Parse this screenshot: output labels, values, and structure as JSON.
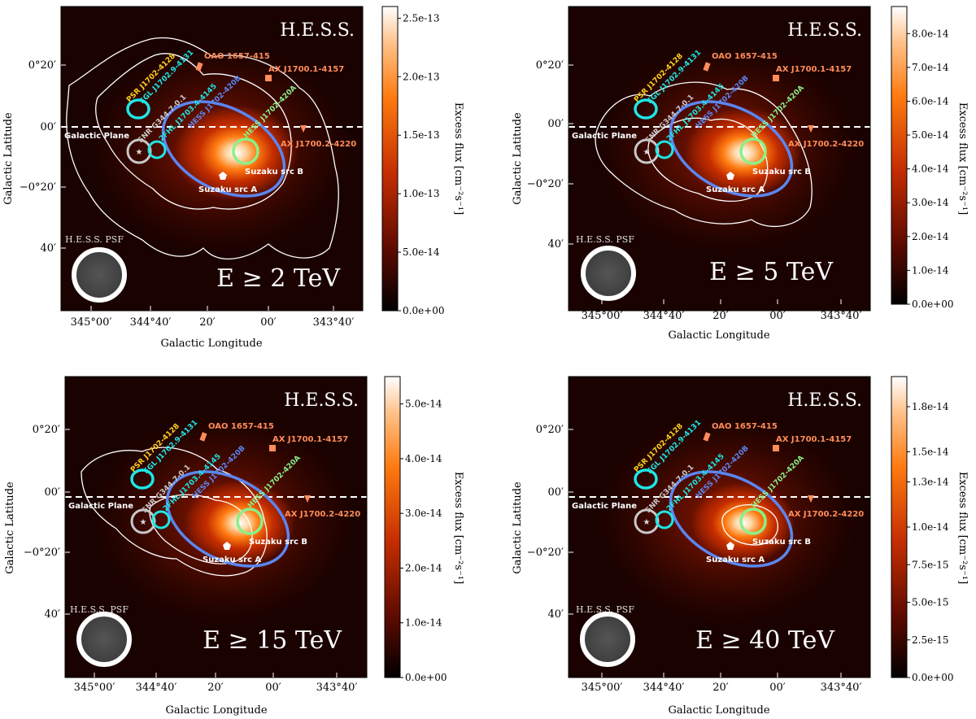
{
  "chart_data": [
    {
      "type": "heatmap",
      "instrument_label": "H.E.S.S.",
      "energy_label": "E ≥ 2 TeV",
      "psf_label": "H.E.S.S. PSF",
      "galactic_plane_label": "Galactic Plane",
      "xlabel": "Galactic Longitude",
      "ylabel": "Galactic Latitude",
      "x_ticks": [
        "345°00′",
        "344°40′",
        "20′",
        "00′",
        "343°40′"
      ],
      "y_ticks": [
        "0°20′",
        "00′",
        "−0°20′",
        "40′"
      ],
      "colorbar_label": "Excess flux [cm⁻²s⁻¹]",
      "colorbar_ticks": [
        "0.0e+00",
        "5.0e-14",
        "1.0e-13",
        "1.5e-13",
        "2.0e-13",
        "2.5e-13"
      ],
      "colorbar_range": [
        0,
        2.6e-13
      ],
      "hotspot": {
        "l": 344.18,
        "b": -0.12,
        "peak_fraction": 0.95
      },
      "sources": {
        "psr": "PSR J1702-4128",
        "fgl": "FGL J1702.9-4131",
        "fhl": "2FHL J1703.4-4145",
        "hess": "HESS J1702-420B",
        "hessa": "HESS J1702-420A",
        "snr": "SNR G344.7-0.1",
        "oao": "OAO 1657-415",
        "ax1": "AX J1700.1-4157",
        "ax2": "AX J1700.2-4220",
        "suzb": "Suzaku src B",
        "suza": "Suzaku src A"
      },
      "colors": {
        "psr": "#ffd21f",
        "fgl": "#1ee6e6",
        "fhl": "#1ee6e6",
        "hess": "#5b86f0",
        "hessa": "#8af08a",
        "snr": "#c8c8c8",
        "marker": "#ff8c5a"
      }
    },
    {
      "type": "heatmap",
      "instrument_label": "H.E.S.S.",
      "energy_label": "E ≥ 5 TeV",
      "psf_label": "H.E.S.S. PSF",
      "galactic_plane_label": "Galactic Plane",
      "xlabel": "Galactic Longitude",
      "ylabel": "Galactic Latitude",
      "x_ticks": [
        "345°00′",
        "344°40′",
        "20′",
        "00′",
        "343°40′"
      ],
      "y_ticks": [
        "0°20′",
        "00′",
        "−0°20′",
        "40′"
      ],
      "colorbar_label": "Excess flux [cm⁻²s⁻¹]",
      "colorbar_ticks": [
        "0.0e+00",
        "1.0e-14",
        "2.0e-14",
        "3.0e-14",
        "4.0e-14",
        "5.0e-14",
        "6.0e-14",
        "7.0e-14",
        "8.0e-14"
      ],
      "colorbar_range": [
        0,
        8.8e-14
      ],
      "hotspot": {
        "l": 344.15,
        "b": -0.13,
        "peak_fraction": 0.9
      },
      "sources": {
        "psr": "PSR J1702-4128",
        "fgl": "FGL J1702.9-4131",
        "fhl": "2FHL J1703.4-4145",
        "hess": "HESS J1702-420B",
        "hessa": "HESS J1702-420A",
        "snr": "SNR G344.7-0.1",
        "oao": "OAO 1657-415",
        "ax1": "AX J1700.1-4157",
        "ax2": "AX J1700.2-4220",
        "suzb": "Suzaku src B",
        "suza": "Suzaku src A"
      },
      "colors": {
        "psr": "#ffd21f",
        "fgl": "#1ee6e6",
        "fhl": "#1ee6e6",
        "hess": "#5b86f0",
        "hessa": "#8af08a",
        "snr": "#c8c8c8",
        "marker": "#ff8c5a"
      }
    },
    {
      "type": "heatmap",
      "instrument_label": "H.E.S.S.",
      "energy_label": "E ≥ 15 TeV",
      "psf_label": "H.E.S.S. PSF",
      "galactic_plane_label": "Galactic Plane",
      "xlabel": "Galactic Longitude",
      "ylabel": "Galactic Latitude",
      "x_ticks": [
        "345°00′",
        "344°40′",
        "20′",
        "00′",
        "343°40′"
      ],
      "y_ticks": [
        "0°20′",
        "00′",
        "−0°20′",
        "40′"
      ],
      "colorbar_label": "Excess flux [cm⁻²s⁻¹]",
      "colorbar_ticks": [
        "0.0e+00",
        "1.0e-14",
        "2.0e-14",
        "3.0e-14",
        "4.0e-14",
        "5.0e-14"
      ],
      "colorbar_range": [
        0,
        5.5e-14
      ],
      "hotspot": {
        "l": 344.15,
        "b": -0.14,
        "peak_fraction": 0.85
      },
      "sources": {
        "psr": "PSR J1702-4128",
        "fgl": "FGL J1702.9-4131",
        "fhl": "2FHL J1703.4-4145",
        "hess": "HESS J1702-420B",
        "hessa": "HESS J1702-420A",
        "snr": "SNR G344.7-0.1",
        "oao": "OAO 1657-415",
        "ax1": "AX J1700.1-4157",
        "ax2": "AX J1700.2-4220",
        "suzb": "Suzaku src B",
        "suza": "Suzaku src A"
      },
      "colors": {
        "psr": "#ffd21f",
        "fgl": "#1ee6e6",
        "fhl": "#1ee6e6",
        "hess": "#5b86f0",
        "hessa": "#8af08a",
        "snr": "#c8c8c8",
        "marker": "#ff8c5a"
      }
    },
    {
      "type": "heatmap",
      "instrument_label": "H.E.S.S.",
      "energy_label": "E ≥ 40 TeV",
      "psf_label": "H.E.S.S. PSF",
      "galactic_plane_label": "Galactic Plane",
      "xlabel": "Galactic Longitude",
      "ylabel": "Galactic Latitude",
      "x_ticks": [
        "345°00′",
        "344°40′",
        "20′",
        "00′",
        "343°40′"
      ],
      "y_ticks": [
        "0°20′",
        "00′",
        "−0°20′",
        "40′"
      ],
      "colorbar_label": "Excess flux [cm⁻²s⁻¹]",
      "colorbar_ticks": [
        "0.0e+00",
        "2.5e-15",
        "5.0e-15",
        "7.5e-15",
        "1.0e-14",
        "1.3e-14",
        "1.5e-14",
        "1.8e-14"
      ],
      "colorbar_range": [
        0,
        2e-14
      ],
      "hotspot": {
        "l": 344.15,
        "b": -0.14,
        "peak_fraction": 0.8
      },
      "sources": {
        "psr": "PSR J1702-4128",
        "fgl": "FGL J1702.9-4131",
        "fhl": "2FHL J1703.4-4145",
        "hess": "HESS J1702-420B",
        "hessa": "HESS J1702-420A",
        "snr": "SNR G344.7-0.1",
        "oao": "OAO 1657-415",
        "ax1": "AX J1700.1-4157",
        "ax2": "AX J1700.2-4220",
        "suzb": "Suzaku src B",
        "suza": "Suzaku src A"
      },
      "colors": {
        "psr": "#ffd21f",
        "fgl": "#1ee6e6",
        "fhl": "#1ee6e6",
        "hess": "#5b86f0",
        "hessa": "#8af08a",
        "snr": "#c8c8c8",
        "marker": "#ff8c5a"
      }
    }
  ]
}
